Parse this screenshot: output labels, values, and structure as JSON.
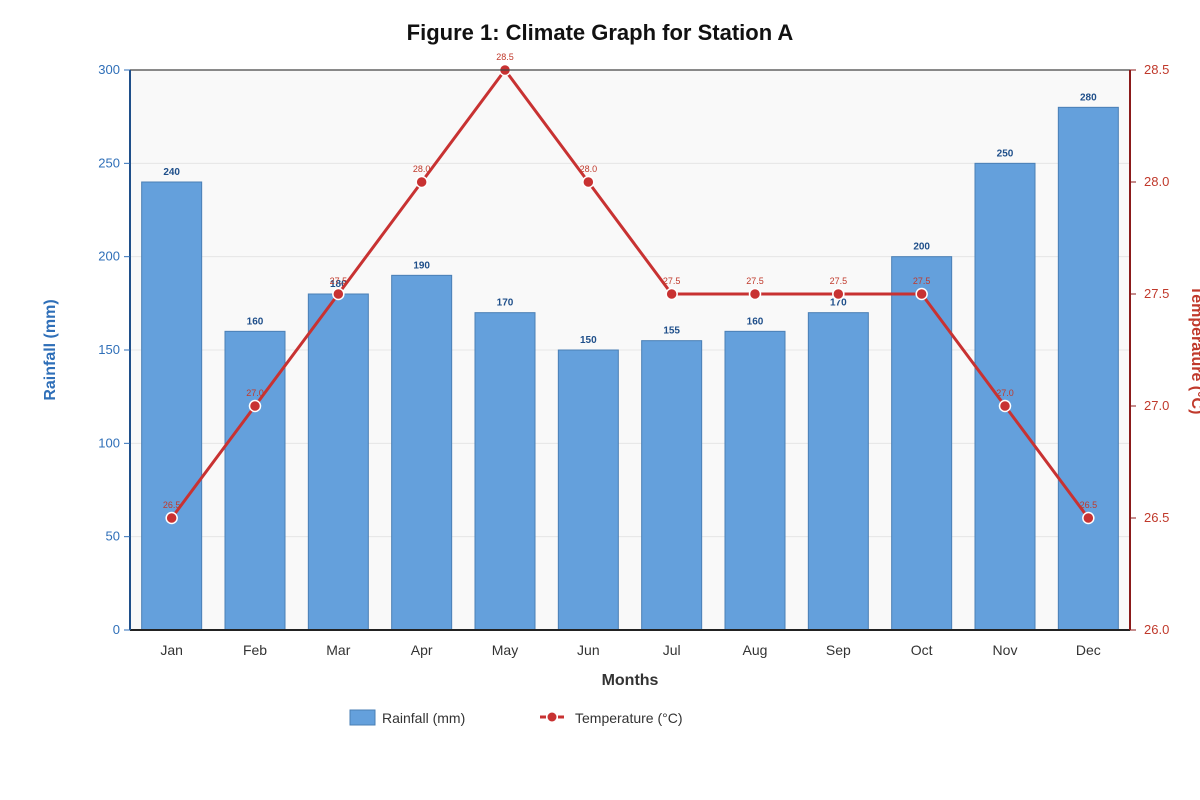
{
  "chart_data": {
    "type": "bar",
    "title": "Figure 1: Climate Graph for Station A",
    "xlabel": "Months",
    "ylabel": "Rainfall (mm)",
    "y2label": "Temperature (°C)",
    "categories": [
      "Jan",
      "Feb",
      "Mar",
      "Apr",
      "May",
      "Jun",
      "Jul",
      "Aug",
      "Sep",
      "Oct",
      "Nov",
      "Dec"
    ],
    "ylim": [
      0,
      300
    ],
    "y2lim": [
      26.0,
      28.5
    ],
    "yticks": [
      "0",
      "50",
      "100",
      "150",
      "200",
      "250",
      "300"
    ],
    "y2ticks": [
      "26.0",
      "26.5",
      "27.0",
      "27.5",
      "28.0",
      "28.5"
    ],
    "grid": true,
    "legend_position": "bottom",
    "series": [
      {
        "name": "Rainfall (mm)",
        "type": "bar",
        "axis": "left",
        "color": "#64a0dc",
        "values": [
          240,
          160,
          180,
          190,
          170,
          150,
          155,
          160,
          170,
          200,
          250,
          280
        ],
        "bar_labels": [
          "240",
          "160",
          "180",
          "190",
          "170",
          "150",
          "155",
          "160",
          "170",
          "200",
          "250",
          "280"
        ]
      },
      {
        "name": "Temperature (°C)",
        "type": "line",
        "axis": "right",
        "color": "#c83232",
        "values": [
          26.5,
          27.0,
          27.5,
          28.0,
          28.5,
          28.0,
          27.5,
          27.5,
          27.5,
          27.5,
          27.0,
          26.5
        ],
        "point_labels": [
          "26.5",
          "27.0",
          "27.5",
          "28.0",
          "28.5",
          "28.0",
          "27.5",
          "27.5",
          "27.5",
          "27.5",
          "27.0",
          "26.5"
        ]
      }
    ]
  }
}
